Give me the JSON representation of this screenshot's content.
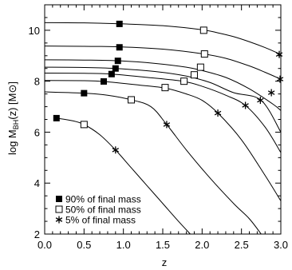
{
  "chart_data": {
    "type": "line",
    "title": "",
    "xlabel": "z",
    "ylabel_parts": {
      "main": "log M",
      "sub": "BH",
      "rest": "(z)  [M",
      "sym": "⊙",
      "close": "]"
    },
    "xlim": [
      0,
      3
    ],
    "ylim": [
      2,
      11
    ],
    "xticks": [
      0,
      0.5,
      1,
      1.5,
      2,
      2.5,
      3
    ],
    "xtick_labels": [
      "0.0",
      "0.5",
      "1.0",
      "1.5",
      "2.0",
      "2.5",
      "3.0"
    ],
    "yticks": [
      2,
      4,
      6,
      8,
      10
    ],
    "ytick_labels": [
      "2",
      "4",
      "6",
      "8",
      "10"
    ],
    "grid": false,
    "legend_position": "bottom-left",
    "legend": [
      {
        "marker": "filled-square",
        "label": "90% of final mass"
      },
      {
        "marker": "open-square",
        "label": "50% of final mass"
      },
      {
        "marker": "asterisk",
        "label": "5% of final mass"
      }
    ],
    "series": [
      {
        "points": [
          [
            0,
            10.3
          ],
          [
            0.5,
            10.29
          ],
          [
            1.0,
            10.25
          ],
          [
            1.5,
            10.18
          ],
          [
            2.0,
            10.02
          ],
          [
            2.2,
            9.9
          ],
          [
            2.4,
            9.75
          ],
          [
            2.6,
            9.55
          ],
          [
            2.8,
            9.32
          ],
          [
            2.95,
            9.12
          ],
          [
            3.0,
            9.05
          ]
        ],
        "markers": [
          {
            "type": "filled-square",
            "x": 0.95,
            "y": 10.25
          },
          {
            "type": "open-square",
            "x": 2.02,
            "y": 10.0
          },
          {
            "type": "asterisk",
            "x": 2.98,
            "y": 9.05
          }
        ]
      },
      {
        "points": [
          [
            0,
            9.38
          ],
          [
            0.5,
            9.37
          ],
          [
            0.95,
            9.35
          ],
          [
            1.5,
            9.26
          ],
          [
            2.0,
            9.08
          ],
          [
            2.3,
            8.9
          ],
          [
            2.6,
            8.6
          ],
          [
            2.8,
            8.35
          ],
          [
            3.0,
            8.08
          ]
        ],
        "markers": [
          {
            "type": "filled-square",
            "x": 0.95,
            "y": 9.33
          },
          {
            "type": "open-square",
            "x": 2.03,
            "y": 9.07
          },
          {
            "type": "asterisk",
            "x": 2.99,
            "y": 8.08
          }
        ]
      },
      {
        "points": [
          [
            0,
            8.84
          ],
          [
            0.5,
            8.83
          ],
          [
            0.95,
            8.8
          ],
          [
            1.4,
            8.7
          ],
          [
            1.8,
            8.55
          ],
          [
            2.0,
            8.42
          ],
          [
            2.3,
            8.15
          ],
          [
            2.6,
            7.7
          ],
          [
            2.9,
            7.1
          ],
          [
            3.0,
            6.85
          ]
        ],
        "markers": [
          {
            "type": "filled-square",
            "x": 0.93,
            "y": 8.8
          },
          {
            "type": "open-square",
            "x": 1.98,
            "y": 8.55
          },
          {
            "type": "asterisk",
            "x": 2.88,
            "y": 7.55
          }
        ]
      },
      {
        "points": [
          [
            0,
            8.55
          ],
          [
            0.5,
            8.54
          ],
          [
            0.9,
            8.5
          ],
          [
            1.4,
            8.38
          ],
          [
            1.8,
            8.2
          ],
          [
            2.1,
            7.95
          ],
          [
            2.4,
            7.55
          ],
          [
            2.75,
            7.25
          ],
          [
            3.0,
            6.0
          ]
        ],
        "markers": [
          {
            "type": "filled-square",
            "x": 0.9,
            "y": 8.5
          },
          {
            "type": "open-square",
            "x": 1.9,
            "y": 8.25
          },
          {
            "type": "asterisk",
            "x": 2.74,
            "y": 7.25
          }
        ]
      },
      {
        "points": [
          [
            0,
            8.32
          ],
          [
            0.5,
            8.31
          ],
          [
            0.85,
            8.28
          ],
          [
            1.3,
            8.15
          ],
          [
            1.75,
            8.0
          ],
          [
            2.0,
            7.8
          ],
          [
            2.3,
            7.45
          ],
          [
            2.55,
            7.05
          ],
          [
            2.8,
            6.2
          ],
          [
            3.0,
            5.2
          ]
        ],
        "markers": [
          {
            "type": "filled-square",
            "x": 0.85,
            "y": 8.28
          },
          {
            "type": "open-square",
            "x": 1.77,
            "y": 8.0
          },
          {
            "type": "asterisk",
            "x": 2.55,
            "y": 7.05
          }
        ]
      },
      {
        "points": [
          [
            0,
            8.03
          ],
          [
            0.5,
            8.02
          ],
          [
            0.75,
            7.99
          ],
          [
            1.2,
            7.85
          ],
          [
            1.53,
            7.73
          ],
          [
            1.8,
            7.5
          ],
          [
            2.0,
            7.25
          ],
          [
            2.2,
            6.75
          ],
          [
            2.5,
            5.7
          ],
          [
            2.8,
            4.3
          ],
          [
            3.0,
            3.3
          ]
        ],
        "markers": [
          {
            "type": "filled-square",
            "x": 0.75,
            "y": 7.99
          },
          {
            "type": "open-square",
            "x": 1.53,
            "y": 7.75
          },
          {
            "type": "asterisk",
            "x": 2.2,
            "y": 6.75
          }
        ]
      },
      {
        "points": [
          [
            0,
            7.58
          ],
          [
            0.5,
            7.53
          ],
          [
            0.8,
            7.45
          ],
          [
            1.1,
            7.27
          ],
          [
            1.35,
            7.0
          ],
          [
            1.55,
            6.3
          ],
          [
            1.8,
            5.3
          ],
          [
            2.1,
            4.2
          ],
          [
            2.4,
            3.2
          ],
          [
            2.6,
            2.6
          ],
          [
            2.75,
            2.0
          ]
        ],
        "markers": [
          {
            "type": "filled-square",
            "x": 0.5,
            "y": 7.53
          },
          {
            "type": "open-square",
            "x": 1.1,
            "y": 7.27
          },
          {
            "type": "asterisk",
            "x": 1.55,
            "y": 6.3
          }
        ]
      },
      {
        "points": [
          [
            0.15,
            6.55
          ],
          [
            0.35,
            6.45
          ],
          [
            0.5,
            6.3
          ],
          [
            0.7,
            5.9
          ],
          [
            0.9,
            5.3
          ],
          [
            1.1,
            4.6
          ],
          [
            1.3,
            3.9
          ],
          [
            1.5,
            3.2
          ],
          [
            1.7,
            2.5
          ],
          [
            1.85,
            2.0
          ]
        ],
        "markers": [
          {
            "type": "filled-square",
            "x": 0.15,
            "y": 6.55
          },
          {
            "type": "open-square",
            "x": 0.5,
            "y": 6.3
          },
          {
            "type": "asterisk",
            "x": 0.9,
            "y": 5.3
          }
        ]
      }
    ]
  }
}
